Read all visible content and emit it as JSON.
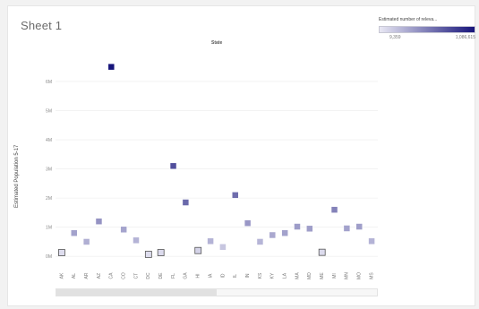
{
  "sheet": {
    "title": "Sheet 1"
  },
  "legend": {
    "title": "Estimated number of releva...",
    "min_label": "9,359",
    "max_label": "1,086,615",
    "color_low": "#e9e8f4",
    "color_high": "#16147a"
  },
  "scroll": {
    "visible_fraction": 0.5
  },
  "chart_data": {
    "type": "scatter",
    "header": "State",
    "ylabel": "Estimated Population 5-17",
    "categories": [
      "AK",
      "AL",
      "AR",
      "AZ",
      "CA",
      "CO",
      "CT",
      "DC",
      "DE",
      "FL",
      "GA",
      "HI",
      "IA",
      "ID",
      "IL",
      "IN",
      "KS",
      "KY",
      "LA",
      "MA",
      "MD",
      "ME",
      "MI",
      "MN",
      "MO",
      "MS"
    ],
    "values": [
      0.13,
      0.8,
      0.5,
      1.2,
      6.5,
      0.92,
      0.55,
      0.07,
      0.13,
      3.1,
      1.85,
      0.2,
      0.52,
      0.32,
      2.1,
      1.14,
      0.5,
      0.73,
      0.8,
      1.02,
      0.95,
      0.14,
      1.6,
      0.96,
      1.02,
      0.52
    ],
    "color_values": [
      0.05,
      0.33,
      0.27,
      0.4,
      1.0,
      0.32,
      0.25,
      0.05,
      0.06,
      0.72,
      0.6,
      0.1,
      0.25,
      0.16,
      0.58,
      0.38,
      0.24,
      0.3,
      0.33,
      0.36,
      0.35,
      0.06,
      0.48,
      0.33,
      0.35,
      0.25
    ],
    "y_ticks": [
      0,
      1,
      2,
      3,
      4,
      5,
      6
    ],
    "y_tick_labels": [
      "0M",
      "1M",
      "2M",
      "3M",
      "4M",
      "5M",
      "6M"
    ],
    "ylim": [
      -0.3,
      6.95
    ],
    "grid": true
  }
}
